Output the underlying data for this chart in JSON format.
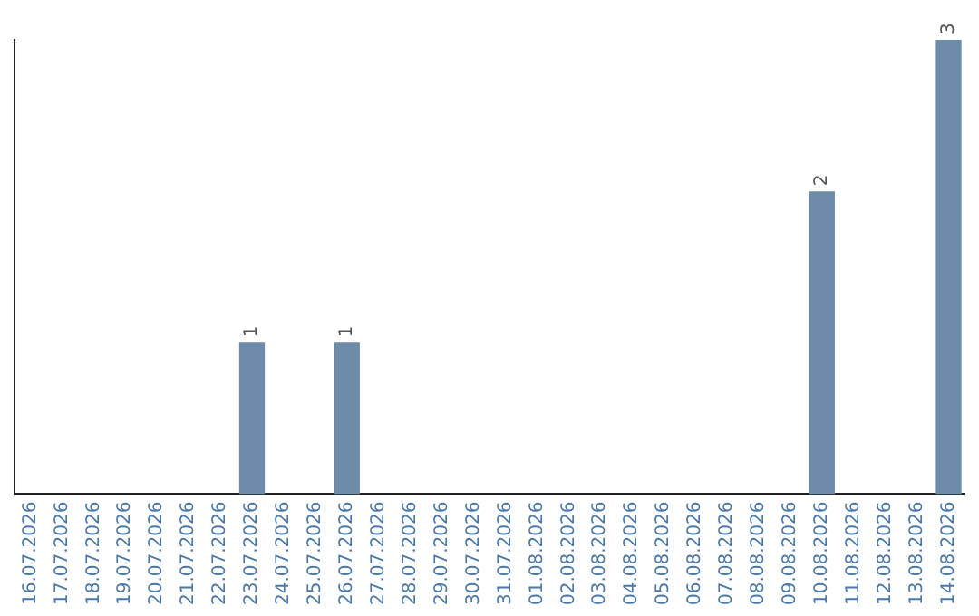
{
  "chart_data": {
    "type": "bar",
    "categories": [
      "16.07.2026",
      "17.07.2026",
      "18.07.2026",
      "19.07.2026",
      "20.07.2026",
      "21.07.2026",
      "22.07.2026",
      "23.07.2026",
      "24.07.2026",
      "25.07.2026",
      "26.07.2026",
      "27.07.2026",
      "28.07.2026",
      "29.07.2026",
      "30.07.2026",
      "31.07.2026",
      "01.08.2026",
      "02.08.2026",
      "03.08.2026",
      "04.08.2026",
      "05.08.2026",
      "06.08.2026",
      "07.08.2026",
      "08.08.2026",
      "09.08.2026",
      "10.08.2026",
      "11.08.2026",
      "12.08.2026",
      "13.08.2026",
      "14.08.2026"
    ],
    "values": [
      0,
      0,
      0,
      0,
      0,
      0,
      0,
      1,
      0,
      0,
      1,
      0,
      0,
      0,
      0,
      0,
      0,
      0,
      0,
      0,
      0,
      0,
      0,
      0,
      0,
      2,
      0,
      0,
      0,
      3
    ],
    "value_labels": [
      null,
      null,
      null,
      null,
      null,
      null,
      null,
      "1",
      null,
      null,
      "1",
      null,
      null,
      null,
      null,
      null,
      null,
      null,
      null,
      null,
      null,
      null,
      null,
      null,
      null,
      "2",
      null,
      null,
      null,
      "3"
    ],
    "color": "#6d8ca9",
    "grid": false,
    "tick_labels": "x"
  }
}
